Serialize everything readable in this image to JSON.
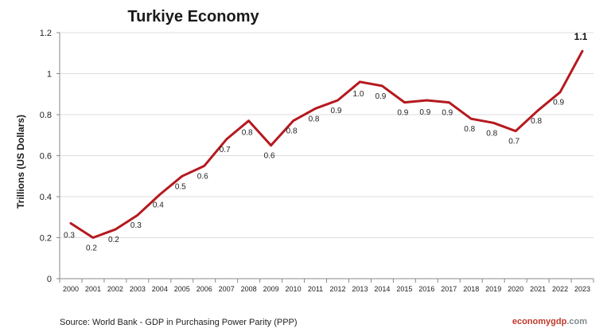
{
  "chart_data": {
    "type": "line",
    "title": "Turkiye Economy",
    "ylabel": "Trillions (US Dollars)",
    "xlabel": "",
    "ylim": [
      0,
      1.2
    ],
    "yticks": [
      "0",
      "0.2",
      "0.4",
      "0.6",
      "0.8",
      "1",
      "1.2"
    ],
    "ytick_values": [
      0,
      0.2,
      0.4,
      0.6,
      0.8,
      1.0,
      1.2
    ],
    "grid": "horizontal",
    "categories": [
      "2000",
      "2001",
      "2002",
      "2003",
      "2004",
      "2005",
      "2006",
      "2007",
      "2008",
      "2009",
      "2010",
      "2011",
      "2012",
      "2013",
      "2014",
      "2015",
      "2016",
      "2017",
      "2018",
      "2019",
      "2020",
      "2021",
      "2022",
      "2023"
    ],
    "series": [
      {
        "color": "#b5191e",
        "values": [
          0.27,
          0.2,
          0.24,
          0.31,
          0.41,
          0.5,
          0.55,
          0.68,
          0.77,
          0.65,
          0.77,
          0.83,
          0.87,
          0.96,
          0.94,
          0.86,
          0.87,
          0.86,
          0.78,
          0.76,
          0.72,
          0.82,
          0.91,
          1.11
        ],
        "data_labels": [
          "0.3",
          "0.2",
          "0.2",
          "0.3",
          "0.4",
          "0.5",
          "0.6",
          "0.7",
          "0.8",
          "0.6",
          "0.8",
          "0.8",
          "0.9",
          "1.0",
          "0.9",
          "0.9",
          "0.9",
          "0.9",
          "0.8",
          "0.8",
          "0.7",
          "0.8",
          "0.9",
          "1.1"
        ]
      }
    ]
  },
  "footer": {
    "source": "Source:  World Bank -  GDP  in Purchasing Power Parity (PPP)",
    "brand_part1": "economy",
    "brand_part2": "gdp",
    "brand_part3": ".com",
    "brand_color1": "#c0392b",
    "brand_color2": "#c0392b",
    "brand_color3": "#7f8c8d"
  }
}
